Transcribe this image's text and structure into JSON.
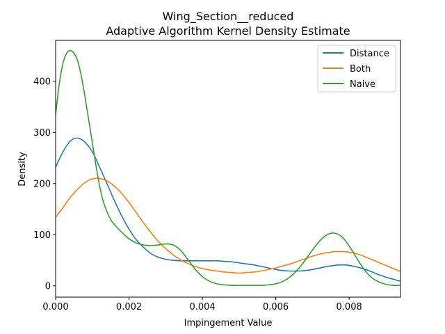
{
  "chart_data": {
    "type": "line",
    "title": "Wing_Section__reduced",
    "subtitle": "Adaptive Algorithm Kernel Density Estimate",
    "xlabel": "Impingement Value",
    "ylabel": "Density",
    "xlim": [
      0,
      0.0094
    ],
    "ylim": [
      -22,
      480
    ],
    "xticks": [
      {
        "value": 0,
        "label": "0.000"
      },
      {
        "value": 0.002,
        "label": "0.002"
      },
      {
        "value": 0.004,
        "label": "0.004"
      },
      {
        "value": 0.006,
        "label": "0.006"
      },
      {
        "value": 0.008,
        "label": "0.008"
      }
    ],
    "yticks": [
      {
        "value": 0,
        "label": "0"
      },
      {
        "value": 100,
        "label": "100"
      },
      {
        "value": 200,
        "label": "200"
      },
      {
        "value": 300,
        "label": "300"
      },
      {
        "value": 400,
        "label": "400"
      }
    ],
    "grid": false,
    "legend_position": "top-right",
    "series": [
      {
        "name": "Distance",
        "color": "#1f77b4",
        "x": [
          0,
          0.0002,
          0.0004,
          0.0006,
          0.0008,
          0.001,
          0.0012,
          0.0014,
          0.0016,
          0.0018,
          0.002,
          0.0022,
          0.0024,
          0.0026,
          0.0028,
          0.003,
          0.0032,
          0.0034,
          0.0036,
          0.0038,
          0.004,
          0.0042,
          0.0044,
          0.0046,
          0.0048,
          0.005,
          0.0052,
          0.0054,
          0.0056,
          0.0058,
          0.006,
          0.0062,
          0.0064,
          0.0066,
          0.0068,
          0.007,
          0.0072,
          0.0074,
          0.0076,
          0.0078,
          0.008,
          0.0082,
          0.0084,
          0.0086,
          0.0088,
          0.009,
          0.0092,
          0.0094
        ],
        "y": [
          232,
          262,
          283,
          289,
          281,
          262,
          232,
          200,
          167,
          137,
          111,
          90,
          75,
          63,
          56,
          52,
          50,
          49,
          49,
          49,
          49,
          49,
          49,
          48,
          47,
          45,
          43,
          41,
          38,
          35,
          32,
          30,
          29,
          29,
          30,
          32,
          35,
          38,
          40,
          41,
          40,
          37,
          33,
          28,
          22,
          17,
          13,
          9
        ]
      },
      {
        "name": "Both",
        "color": "#ff7f0e",
        "x": [
          0,
          0.0002,
          0.0004,
          0.0006,
          0.0008,
          0.001,
          0.0012,
          0.0014,
          0.0016,
          0.0018,
          0.002,
          0.0022,
          0.0024,
          0.0026,
          0.0028,
          0.003,
          0.0032,
          0.0034,
          0.0036,
          0.0038,
          0.004,
          0.0042,
          0.0044,
          0.0046,
          0.0048,
          0.005,
          0.0052,
          0.0054,
          0.0056,
          0.0058,
          0.006,
          0.0062,
          0.0064,
          0.0066,
          0.0068,
          0.007,
          0.0072,
          0.0074,
          0.0076,
          0.0078,
          0.008,
          0.0082,
          0.0084,
          0.0086,
          0.0088,
          0.009,
          0.0092,
          0.0094
        ],
        "y": [
          134,
          153,
          173,
          189,
          202,
          209,
          210,
          205,
          195,
          181,
          163,
          143,
          123,
          104,
          87,
          73,
          61,
          51,
          44,
          38,
          34,
          31,
          29,
          27,
          26,
          25,
          26,
          27,
          29,
          32,
          35,
          39,
          43,
          48,
          53,
          58,
          62,
          65,
          67,
          67,
          66,
          63,
          58,
          52,
          46,
          40,
          34,
          28
        ]
      },
      {
        "name": "Naive",
        "color": "#2ca02c",
        "x": [
          0,
          0.0001,
          0.0002,
          0.0003,
          0.0004,
          0.0005,
          0.0006,
          0.0007,
          0.0008,
          0.0009,
          0.001,
          0.0011,
          0.0012,
          0.0013,
          0.0014,
          0.0015,
          0.0016,
          0.0018,
          0.002,
          0.0022,
          0.0024,
          0.0026,
          0.0028,
          0.003,
          0.0032,
          0.0034,
          0.0036,
          0.0038,
          0.004,
          0.0042,
          0.0044,
          0.0046,
          0.0048,
          0.005,
          0.0052,
          0.0054,
          0.0056,
          0.0058,
          0.006,
          0.0062,
          0.0064,
          0.0066,
          0.0068,
          0.007,
          0.0072,
          0.0074,
          0.0076,
          0.0078,
          0.008,
          0.0082,
          0.0084,
          0.0086,
          0.0088,
          0.009,
          0.0092,
          0.0094
        ],
        "y": [
          335,
          395,
          435,
          455,
          460,
          455,
          440,
          410,
          370,
          325,
          280,
          235,
          195,
          165,
          145,
          130,
          120,
          105,
          92,
          84,
          80,
          79,
          80,
          82,
          80,
          70,
          52,
          33,
          18,
          9,
          4,
          2,
          1,
          1,
          1,
          1,
          1,
          2,
          4,
          9,
          18,
          32,
          50,
          70,
          88,
          100,
          103,
          96,
          78,
          55,
          33,
          17,
          8,
          3,
          1,
          1
        ]
      }
    ]
  }
}
